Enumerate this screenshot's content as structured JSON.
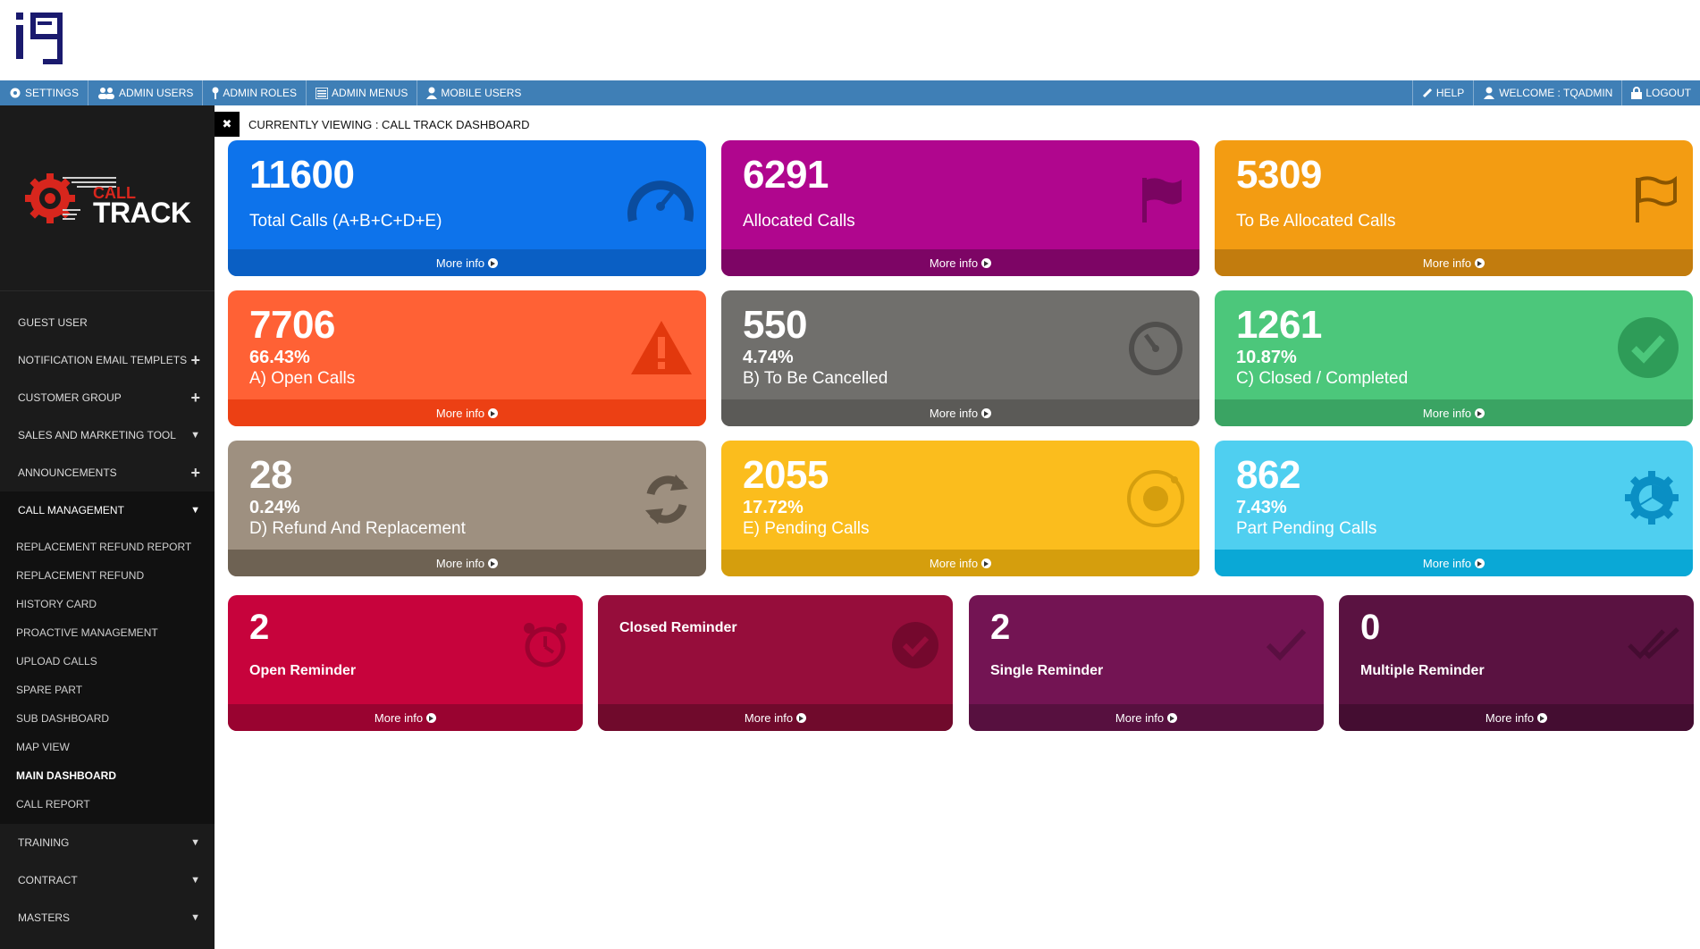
{
  "nav": {
    "left": [
      {
        "label": "SETTINGS",
        "icon": "gear-icon"
      },
      {
        "label": "ADMIN USERS",
        "icon": "users-icon"
      },
      {
        "label": "ADMIN ROLES",
        "icon": "pin-icon"
      },
      {
        "label": "ADMIN MENUS",
        "icon": "list-icon"
      },
      {
        "label": "MOBILE USERS",
        "icon": "user-icon"
      }
    ],
    "right": [
      {
        "label": "HELP",
        "icon": "link-icon"
      },
      {
        "label": "WELCOME : TQADMIN",
        "icon": "user-icon"
      },
      {
        "label": "LOGOUT",
        "icon": "lock-icon"
      }
    ]
  },
  "brand": {
    "call": "CALL",
    "track": "TRACK"
  },
  "viewing": "CURRENTLY VIEWING : CALL TRACK DASHBOARD",
  "sidebar": {
    "items": [
      {
        "label": "GUEST USER",
        "toggle": ""
      },
      {
        "label": "NOTIFICATION EMAIL TEMPLETS",
        "toggle": "+"
      },
      {
        "label": "CUSTOMER GROUP",
        "toggle": "+"
      },
      {
        "label": "SALES AND MARKETING TOOL",
        "toggle": "▼"
      },
      {
        "label": "ANNOUNCEMENTS",
        "toggle": "+"
      },
      {
        "label": "CALL MANAGEMENT",
        "toggle": "▼"
      }
    ],
    "submenu": [
      "REPLACEMENT REFUND REPORT",
      "REPLACEMENT REFUND",
      "HISTORY CARD",
      "PROACTIVE MANAGEMENT",
      "UPLOAD CALLS",
      "SPARE PART",
      "SUB DASHBOARD",
      "MAP VIEW",
      "MAIN DASHBOARD",
      "CALL REPORT"
    ],
    "bottom": [
      {
        "label": "TRAINING",
        "toggle": "▼"
      },
      {
        "label": "CONTRACT",
        "toggle": "▼"
      },
      {
        "label": "MASTERS",
        "toggle": "▼"
      }
    ]
  },
  "cards": [
    {
      "value": "11600",
      "pct": "",
      "label": "Total Calls (A+B+C+D+E)",
      "more": "More info",
      "bg": "#0d73eb",
      "footer": "#0a5fc4",
      "icon": "speedometer-icon"
    },
    {
      "value": "6291",
      "pct": "",
      "label": "Allocated Calls",
      "more": "More info",
      "bg": "#b0068e",
      "footer": "#7d0565",
      "icon": "flag-icon"
    },
    {
      "value": "5309",
      "pct": "",
      "label": "To Be Allocated Calls",
      "more": "More info",
      "bg": "#f39c12",
      "footer": "#c27c0e",
      "icon": "flag-outline-icon"
    },
    {
      "value": "7706",
      "pct": "66.43%",
      "label": "A) Open Calls",
      "more": "More info",
      "bg": "#ff6135",
      "footer": "#ec4014",
      "icon": "warning-icon"
    },
    {
      "value": "550",
      "pct": "4.74%",
      "label": "B) To Be Cancelled",
      "more": "More info",
      "bg": "#706f6c",
      "footer": "#5b5a57",
      "icon": "stopwatch-icon"
    },
    {
      "value": "1261",
      "pct": "10.87%",
      "label": "C) Closed / Completed",
      "more": "More info",
      "bg": "#4cc77b",
      "footer": "#3aa463",
      "icon": "check-circle-icon"
    },
    {
      "value": "28",
      "pct": "0.24%",
      "label": "D) Refund And Replacement",
      "more": "More info",
      "bg": "#9e9080",
      "footer": "#6e6253",
      "icon": "refresh-icon"
    },
    {
      "value": "2055",
      "pct": "17.72%",
      "label": "E) Pending Calls",
      "more": "More info",
      "bg": "#fbbd1d",
      "footer": "#d59e0d",
      "icon": "record-icon"
    },
    {
      "value": "862",
      "pct": "7.43%",
      "label": "Part Pending Calls",
      "more": "More info",
      "bg": "#4fcff0",
      "footer": "#0aa8d6",
      "icon": "gear-pie-icon"
    }
  ],
  "reminders": [
    {
      "value": "2",
      "label": "Open Reminder",
      "more": "More info",
      "bg": "#c7033c",
      "footer": "#990330",
      "icon": "alarm-clock-icon"
    },
    {
      "value": "",
      "label": "Closed Reminder",
      "more": "More info",
      "bg": "#960d3b",
      "footer": "#700a2c",
      "icon": "check-circle-icon"
    },
    {
      "value": "2",
      "label": "Single Reminder",
      "more": "More info",
      "bg": "#731453",
      "footer": "#57103f",
      "icon": "check-icon"
    },
    {
      "value": "0",
      "label": "Multiple Reminder",
      "more": "More info",
      "bg": "#5a1241",
      "footer": "#440d31",
      "icon": "double-check-icon"
    }
  ]
}
